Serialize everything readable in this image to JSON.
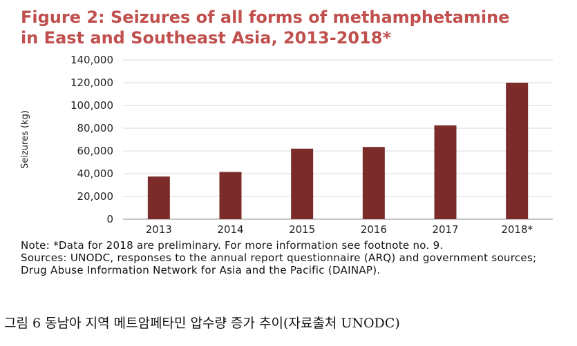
{
  "title_lines": [
    "Figure 2:  Seizures of all forms of methamphetamine",
    "in East and Southeast Asia, 2013-2018*"
  ],
  "colors": {
    "title": "#c0504d",
    "bar": "#7b2c2a",
    "grid": "#d9d9d9"
  },
  "chart_data": {
    "type": "bar",
    "title": "Figure 2:  Seizures of all forms of methamphetamine in East and Southeast Asia, 2013-2018*",
    "xlabel": "",
    "ylabel": "Seizures (kg)",
    "categories": [
      "2013",
      "2014",
      "2015",
      "2016",
      "2017",
      "2018*"
    ],
    "values": [
      37500,
      41500,
      62000,
      63500,
      82500,
      120000
    ],
    "ylim": [
      0,
      140000
    ],
    "yticks": [
      "0",
      "20,000",
      "40,000",
      "60,000",
      "80,000",
      "100,000",
      "120,000",
      "140,000"
    ],
    "grid": true,
    "legend": "none"
  },
  "notes": [
    "Note: *Data for 2018 are preliminary. For more information see footnote no. 9.",
    "Sources: UNODC, responses to the annual report questionnaire (ARQ) and government sources; Drug Abuse Information Network for Asia and the Pacific (DAINAP)."
  ],
  "caption": "그림 6 동남아 지역 메트암페타민 압수량 증가 추이(자료출처 UNODC)"
}
